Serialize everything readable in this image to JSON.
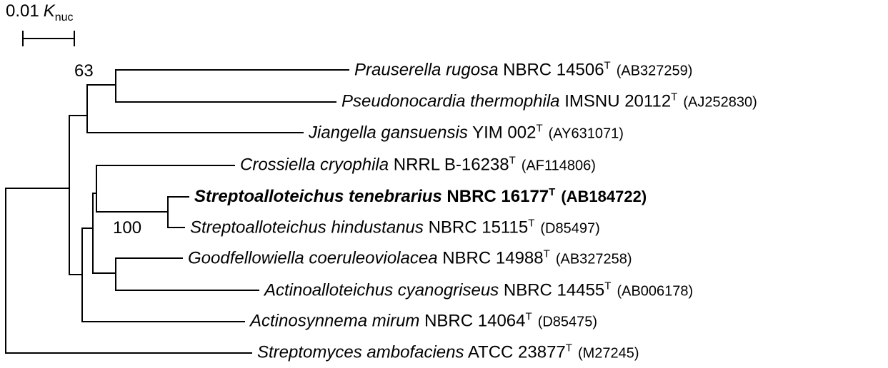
{
  "scale_bar": {
    "value": "0.01",
    "symbol": "K",
    "subscript": "nuc"
  },
  "bootstrap": {
    "node_a": "63",
    "node_b": "100"
  },
  "taxa": [
    {
      "genus_species": "Prauserella rugosa",
      "strain": "NBRC 14506",
      "type_mark": "T",
      "accession": "(AB327259)",
      "bold": false
    },
    {
      "genus_species": "Pseudonocardia thermophila",
      "strain": "IMSNU 20112",
      "type_mark": "T",
      "accession": "(AJ252830)",
      "bold": false
    },
    {
      "genus_species": "Jiangella gansuensis",
      "strain": "YIM 002",
      "type_mark": "T",
      "accession": "(AY631071)",
      "bold": false
    },
    {
      "genus_species": "Crossiella cryophila",
      "strain": "NRRL B-16238",
      "type_mark": "T",
      "accession": "(AF114806)",
      "bold": false
    },
    {
      "genus_species": "Streptoalloteichus tenebrarius",
      "strain": "NBRC 16177",
      "type_mark": "T",
      "accession": "(AB184722)",
      "bold": true
    },
    {
      "genus_species": "Streptoalloteichus hindustanus",
      "strain": "NBRC 15115",
      "type_mark": "T",
      "accession": "(D85497)",
      "bold": false
    },
    {
      "genus_species": "Goodfellowiella coeruleoviolacea",
      "strain": "NBRC 14988",
      "type_mark": "T",
      "accession": "(AB327258)",
      "bold": false
    },
    {
      "genus_species": "Actinoalloteichus cyanogriseus",
      "strain": "NBRC 14455",
      "type_mark": "T",
      "accession": "(AB006178)",
      "bold": false
    },
    {
      "genus_species": "Actinosynnema mirum",
      "strain": "NBRC 14064",
      "type_mark": "T",
      "accession": "(D85475)",
      "bold": false
    },
    {
      "genus_species": "Streptomyces ambofaciens",
      "strain": "ATCC 23877",
      "type_mark": "T",
      "accession": "(M27245)",
      "bold": false
    }
  ]
}
